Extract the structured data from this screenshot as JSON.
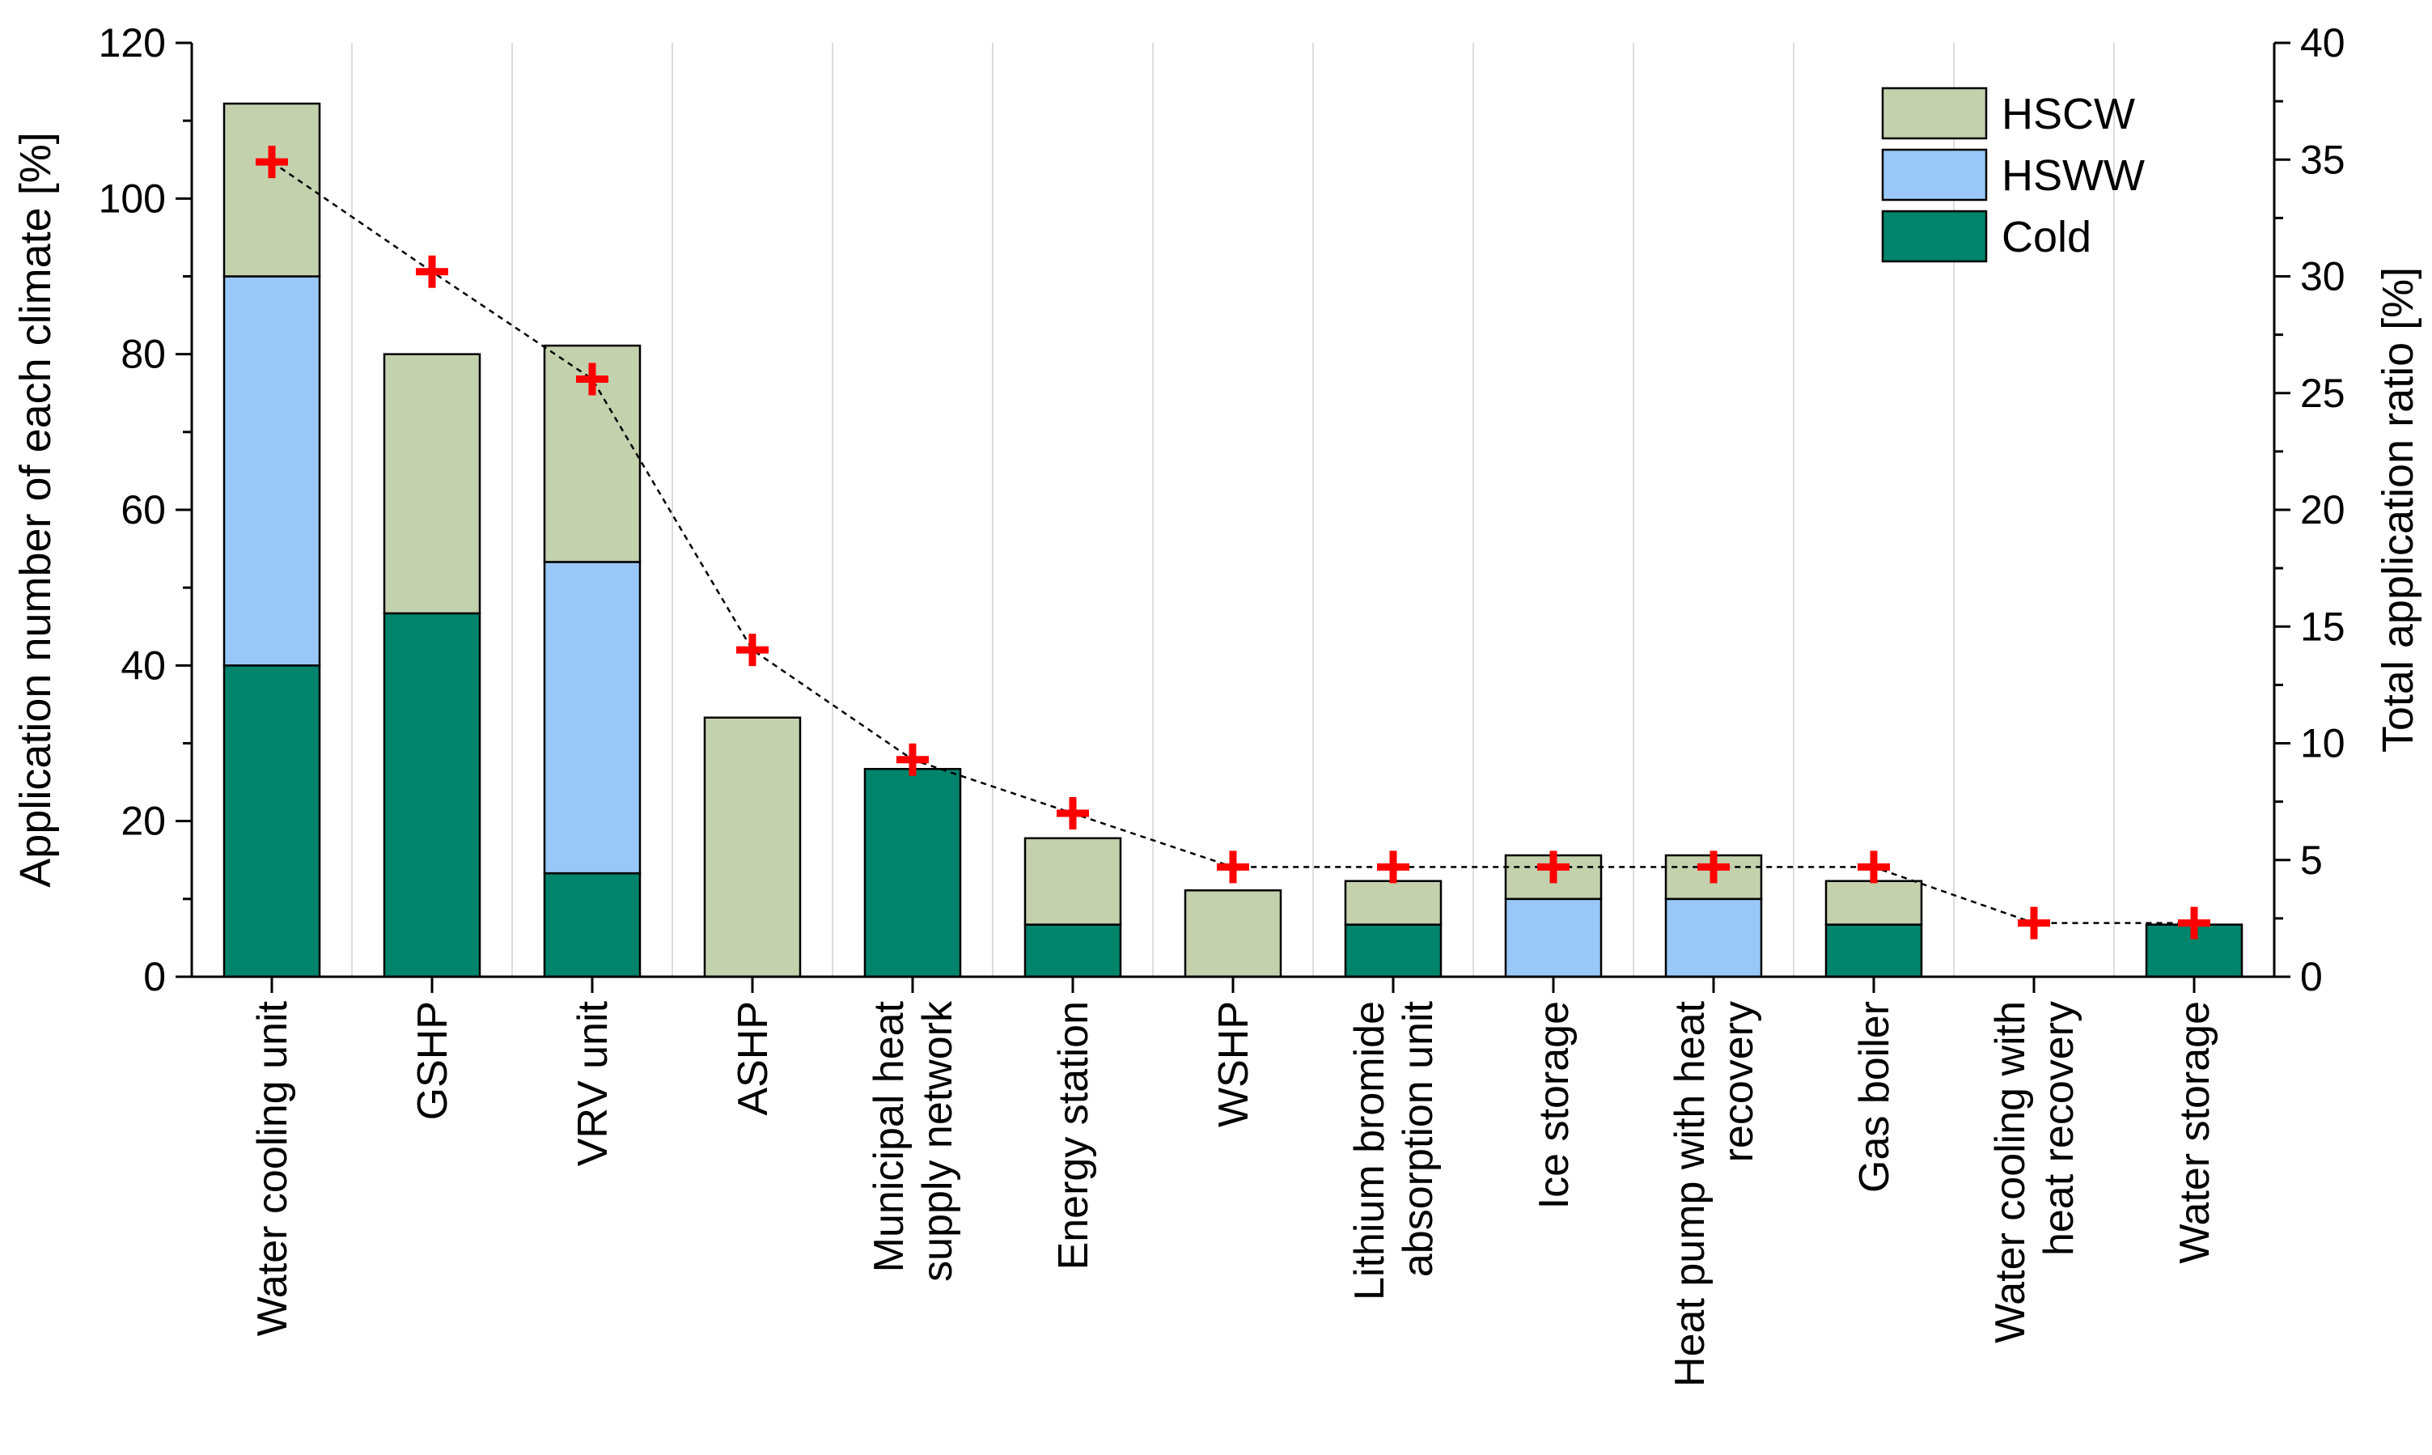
{
  "chart_data": {
    "type": "bar",
    "stacked": true,
    "categories": [
      [
        "Water cooling unit"
      ],
      [
        "GSHP"
      ],
      [
        "VRV unit"
      ],
      [
        "ASHP"
      ],
      [
        "Municipal heat",
        "supply network"
      ],
      [
        "Energy station"
      ],
      [
        "WSHP"
      ],
      [
        "Lithium bromide",
        "absorption unit"
      ],
      [
        "Ice storage"
      ],
      [
        "Heat pump with heat",
        "recovery"
      ],
      [
        "Gas boiler"
      ],
      [
        "Water cooling with",
        "heat recovery"
      ],
      [
        "Water storage"
      ]
    ],
    "series": [
      {
        "name": "Cold",
        "color": "#00846c",
        "values": [
          40,
          46.7,
          13.3,
          0,
          26.7,
          6.7,
          0,
          6.7,
          0,
          0,
          6.7,
          0,
          6.7
        ]
      },
      {
        "name": "HSWW",
        "color": "#99c7f8",
        "values": [
          50,
          0,
          40,
          0,
          0,
          0,
          0,
          0,
          10,
          10,
          0,
          0,
          0
        ]
      },
      {
        "name": "HSCW",
        "color": "#c4d1ad",
        "values": [
          22.2,
          33.3,
          27.8,
          33.3,
          0,
          11.1,
          11.1,
          5.6,
          5.6,
          5.6,
          5.6,
          0,
          0
        ]
      }
    ],
    "line_series": {
      "name": "Total application ratio",
      "axis": "right",
      "color": "#ff0000",
      "marker": "plus",
      "values": [
        34.9,
        30.2,
        25.6,
        14.0,
        9.3,
        7.0,
        4.7,
        4.7,
        4.7,
        4.7,
        4.7,
        2.3,
        2.3
      ]
    },
    "ylabel": "Application number of each climate [%]",
    "ylabel_right": "Total application ratio [%]",
    "ylim": [
      0,
      120
    ],
    "ylim_right": [
      0,
      40
    ],
    "yticks": [
      "0",
      "20",
      "40",
      "60",
      "80",
      "100",
      "120"
    ],
    "yticks_right": [
      "0",
      "5",
      "10",
      "15",
      "20",
      "25",
      "30",
      "35",
      "40"
    ],
    "legend": [
      "HSCW",
      "HSWW",
      "Cold"
    ],
    "legend_position": "top-right",
    "grid": "vertical"
  }
}
